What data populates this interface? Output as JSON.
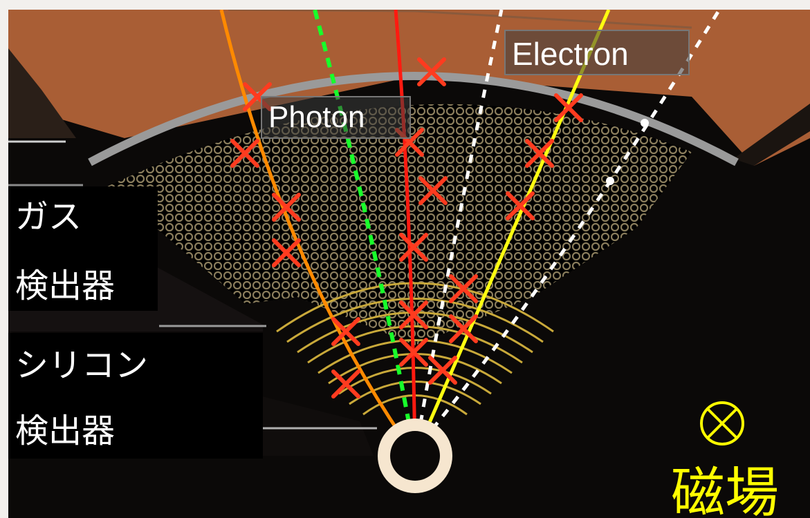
{
  "labels": {
    "photon": "Photon",
    "electron": "Electron",
    "gas_detector_line1": "ガス",
    "gas_detector_line2": "検出器",
    "silicon_detector_line1": "シリコン",
    "silicon_detector_line2": "検出器",
    "magnetic_field_symbol": "⊗",
    "magnetic_field": "磁場"
  },
  "colors": {
    "background_outer": "#f2f0ed",
    "detector_dark": "#0b0908",
    "calorimeter_brown": "#a95e35",
    "gas_grid": "#8a7d5c",
    "silicon_layers": "#c9a93a",
    "hit_marker": "#ff3b1f",
    "track_orange": "#ff8a00",
    "track_red": "#ff1a10",
    "track_green_dashed": "#18ff2a",
    "track_yellow": "#ffff10",
    "track_white_dashed": "#ffffff",
    "beam_pipe": "#f6e6cf",
    "field_label": "#ffff00"
  }
}
